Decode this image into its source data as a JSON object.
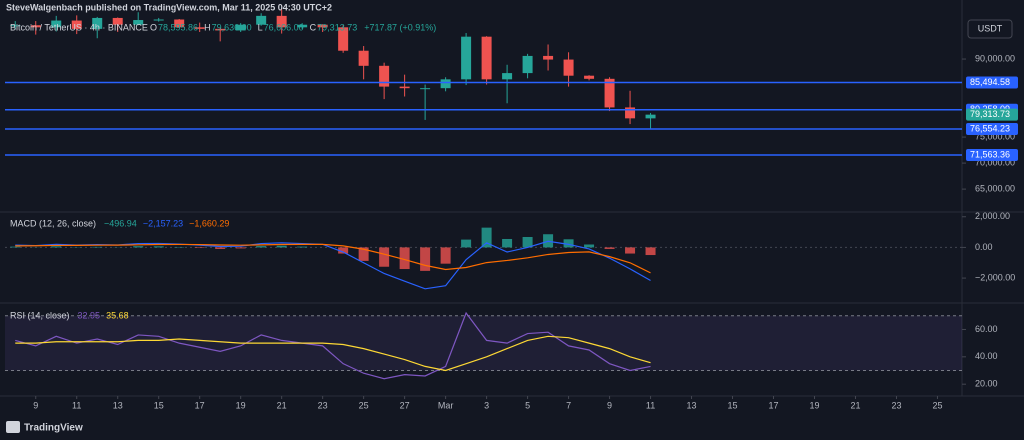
{
  "header": {
    "publisher": "SteveWalgenbach published on TradingView.com, Mar 11, 2025 04:30 UTC+2",
    "currency": "USDT",
    "footer": "TradingView"
  },
  "chart_data": [
    {
      "type": "candlestick",
      "title": "Bitcoin / TetherUS · 4h · BINANCE",
      "ohlc_legend": [
        {
          "key": "O",
          "text": "78,595.86"
        },
        {
          "key": "H",
          "text": "79,636.00"
        },
        {
          "key": "L",
          "text": "76,606.00"
        },
        {
          "key": "C",
          "text": "79,313.73"
        },
        {
          "key": "",
          "text": "+717.87 (+0.91%)"
        }
      ],
      "x": [
        -1,
        0,
        1,
        2,
        3,
        4,
        5,
        6,
        7,
        8,
        9,
        10,
        11,
        12,
        13,
        14,
        15,
        16,
        17,
        18,
        19,
        20,
        21,
        22,
        23,
        24,
        25,
        26,
        27,
        28,
        29,
        30
      ],
      "open": [
        96500,
        96500,
        96100,
        97400,
        95800,
        97900,
        96600,
        97500,
        97600,
        96100,
        95800,
        95500,
        96600,
        98300,
        96100,
        96600,
        96100,
        91600,
        88700,
        84700,
        84400,
        84400,
        86100,
        94300,
        86100,
        87300,
        90600,
        89900,
        86800,
        86200,
        80700,
        78595.86
      ],
      "high": [
        97300,
        97300,
        98300,
        98400,
        98100,
        98000,
        99000,
        97900,
        97700,
        97000,
        96000,
        96900,
        98800,
        99500,
        96900,
        96700,
        96500,
        92500,
        89300,
        87000,
        85100,
        86500,
        95000,
        94400,
        88900,
        91000,
        92800,
        91300,
        86900,
        86500,
        83900,
        79636
      ],
      "low": [
        95700,
        94700,
        95300,
        94800,
        94000,
        95200,
        96500,
        97200,
        96000,
        95200,
        93400,
        95200,
        96400,
        94900,
        95800,
        95200,
        91200,
        86100,
        82300,
        82800,
        78300,
        83800,
        85000,
        85100,
        81500,
        86300,
        87800,
        84700,
        85900,
        80000,
        77500,
        76606
      ],
      "close": [
        96500,
        96100,
        97400,
        95800,
        97900,
        96600,
        97500,
        97600,
        96100,
        95800,
        95500,
        96600,
        98300,
        96100,
        96600,
        96100,
        91600,
        88700,
        84700,
        84400,
        84400,
        86100,
        94300,
        86100,
        87300,
        90600,
        89900,
        86800,
        86200,
        80700,
        78600,
        79313.73
      ],
      "up_color": "#26a69a",
      "down_color": "#ef5350",
      "xlim": [
        -1.5,
        45.1
      ],
      "xticks": [
        {
          "value": 0,
          "label": "9"
        },
        {
          "value": 2,
          "label": "11"
        },
        {
          "value": 4,
          "label": "13"
        },
        {
          "value": 6,
          "label": "15"
        },
        {
          "value": 8,
          "label": "17"
        },
        {
          "value": 10,
          "label": "19"
        },
        {
          "value": 12,
          "label": "21"
        },
        {
          "value": 14,
          "label": "23"
        },
        {
          "value": 16,
          "label": "25"
        },
        {
          "value": 18,
          "label": "27"
        },
        {
          "value": 20,
          "label": "Mar"
        },
        {
          "value": 22,
          "label": "3"
        },
        {
          "value": 24,
          "label": "5"
        },
        {
          "value": 26,
          "label": "7"
        },
        {
          "value": 28,
          "label": "9"
        },
        {
          "value": 30,
          "label": "11"
        },
        {
          "value": 32,
          "label": "13"
        },
        {
          "value": 34,
          "label": "15"
        },
        {
          "value": 36,
          "label": "17"
        },
        {
          "value": 38,
          "label": "19"
        },
        {
          "value": 40,
          "label": "21"
        },
        {
          "value": 42,
          "label": "23"
        },
        {
          "value": 44,
          "label": "25"
        }
      ],
      "ylim": [
        60600,
        101350
      ],
      "yticks": [
        {
          "value": 65000,
          "label": "65,000.00"
        },
        {
          "value": 70000,
          "label": "70,000.00"
        },
        {
          "value": 75000,
          "label": "75,000.00"
        },
        {
          "value": 90000,
          "label": "90,000.00"
        }
      ],
      "levels": [
        {
          "value": 85494.58,
          "label": "85,494.58"
        },
        {
          "value": 80258.09,
          "label": "80,258.09"
        },
        {
          "value": 76554.23,
          "label": "76,554.23"
        },
        {
          "value": 71563.36,
          "label": "71,563.36"
        }
      ],
      "level_color": "#2962ff",
      "last_price": {
        "value": 79313.73,
        "label": "79,313.73"
      }
    },
    {
      "type": "macd",
      "title": "MACD (12, 26, close)",
      "series": [
        {
          "name": "Histogram",
          "kind": "bar",
          "color": "#26a69a",
          "negative_color": "#ef5350",
          "legend_text": "−496.94",
          "values": [
            50,
            10,
            70,
            15,
            35,
            10,
            80,
            70,
            25,
            -35,
            -100,
            -65,
            85,
            110,
            50,
            0,
            -400,
            -880,
            -1260,
            -1410,
            -1530,
            -1060,
            510,
            1290,
            550,
            680,
            860,
            530,
            190,
            -100,
            -400,
            -496.94
          ]
        },
        {
          "name": "MACD",
          "kind": "line",
          "color": "#2962ff",
          "legend_text": "−2,157.23",
          "values": [
            150,
            120,
            200,
            150,
            180,
            160,
            250,
            260,
            220,
            150,
            60,
            80,
            250,
            300,
            250,
            200,
            -300,
            -1000,
            -1700,
            -2200,
            -2700,
            -2500,
            -800,
            300,
            -300,
            0,
            400,
            200,
            -100,
            -700,
            -1400,
            -2157.23
          ]
        },
        {
          "name": "Signal",
          "kind": "line",
          "color": "#ff6d00",
          "legend_text": "−1,660.29",
          "values": [
            100,
            110,
            130,
            135,
            145,
            150,
            170,
            190,
            195,
            185,
            160,
            145,
            165,
            190,
            200,
            200,
            100,
            -120,
            -440,
            -790,
            -1170,
            -1440,
            -1310,
            -990,
            -850,
            -680,
            -460,
            -330,
            -290,
            -600,
            -1000,
            -1660.29
          ]
        }
      ],
      "ylim": [
        -3560,
        2310
      ],
      "yticks": [
        {
          "value": 2000,
          "label": "2,000.00"
        },
        {
          "value": 0,
          "label": "0.00"
        },
        {
          "value": -2000,
          "label": "−2,000.00"
        }
      ]
    },
    {
      "type": "rsi",
      "title": "RSI (14, close)",
      "series": [
        {
          "name": "RSI",
          "color": "#7e57c2",
          "legend_text": "32.95",
          "values": [
            52,
            48,
            55,
            50,
            53,
            49,
            56,
            55,
            50,
            47,
            44,
            48,
            56,
            52,
            50,
            48,
            35,
            28,
            24,
            27,
            26,
            33,
            72,
            52,
            50,
            57,
            58,
            48,
            45,
            35,
            30,
            32.95
          ]
        },
        {
          "name": "RSI MA",
          "color": "#fdd835",
          "legend_text": "35.68",
          "values": [
            50,
            50,
            51,
            51,
            51,
            51,
            52,
            52,
            53,
            52,
            51,
            50,
            50,
            50,
            50,
            50,
            49,
            46,
            42,
            38,
            33,
            30,
            35,
            40,
            46,
            52,
            55,
            54,
            50,
            46,
            40,
            35.68
          ]
        }
      ],
      "bands": [
        30,
        70
      ],
      "ylim": [
        12.1,
        78.6
      ],
      "yticks": [
        {
          "value": 20,
          "label": "20.00"
        },
        {
          "value": 40,
          "label": "40.00"
        },
        {
          "value": 60,
          "label": "60.00"
        }
      ]
    }
  ]
}
